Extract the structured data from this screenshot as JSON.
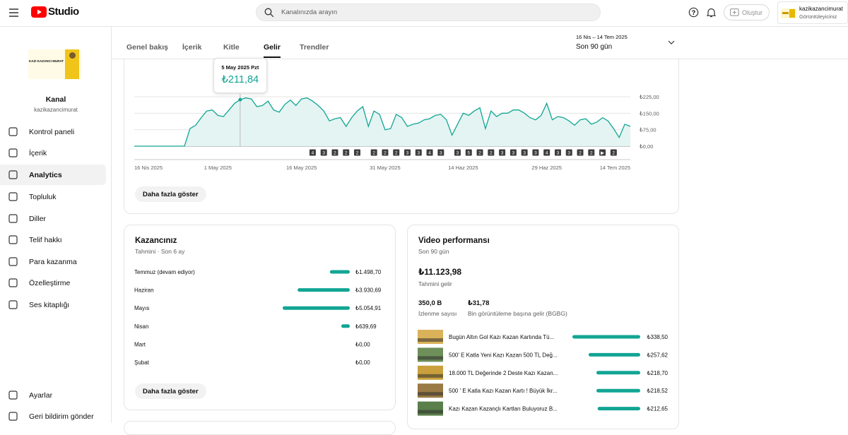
{
  "topbar": {
    "logo": "Studio",
    "search_placeholder": "Kanalınızda arayın",
    "create": "Oluştur",
    "account_name": "kazikazancimurat",
    "account_role": "Görüntüleyiciniz"
  },
  "sidebar": {
    "avatar_text": "KAZI KAZANCI MURAT",
    "channel_title": "Kanal",
    "channel_handle": "kazikazancimurat",
    "nav": [
      "Kontrol paneli",
      "İçerik",
      "Analytics",
      "Topluluk",
      "Diller",
      "Telif hakkı",
      "Para kazanma",
      "Özelleştirme",
      "Ses kitaplığı"
    ],
    "active": "Analytics",
    "footer": [
      "Ayarlar",
      "Geri bildirim gönder"
    ]
  },
  "tabs": {
    "items": [
      "Genel bakış",
      "İçerik",
      "Kitle",
      "Gelir",
      "Trendler"
    ],
    "active": "Gelir"
  },
  "date_range": {
    "range": "16 Nis – 14 Tem 2025",
    "period": "Son 90 gün"
  },
  "chart_data": [
    {
      "type": "line",
      "color": "#12a594",
      "fill": "#e3f4f2",
      "categories": [
        "16 Nis 2025",
        null,
        null,
        null,
        null,
        null,
        null,
        null,
        null,
        null,
        null,
        null,
        null,
        null,
        null,
        "1 May 2025",
        null,
        null,
        null,
        null,
        null,
        null,
        null,
        null,
        null,
        null,
        null,
        null,
        null,
        null,
        "16 May 2025",
        null,
        null,
        null,
        null,
        null,
        null,
        null,
        null,
        null,
        null,
        null,
        null,
        null,
        null,
        "31 May 2025",
        null,
        null,
        null,
        null,
        null,
        null,
        null,
        null,
        null,
        null,
        null,
        null,
        null,
        "14 Haz 2025",
        null,
        null,
        null,
        null,
        null,
        null,
        null,
        null,
        null,
        null,
        null,
        null,
        null,
        null,
        "29 Haz 2025",
        null,
        null,
        null,
        null,
        null,
        null,
        null,
        null,
        null,
        null,
        null,
        null,
        null,
        null,
        "14 Tem 2025"
      ],
      "values": [
        0,
        0,
        0,
        0,
        0,
        0,
        0,
        0,
        0,
        0,
        80,
        95,
        130,
        160,
        165,
        140,
        135,
        165,
        195,
        211.84,
        220,
        215,
        180,
        185,
        205,
        165,
        155,
        190,
        210,
        185,
        215,
        220,
        205,
        185,
        160,
        115,
        125,
        130,
        90,
        130,
        160,
        180,
        90,
        160,
        145,
        75,
        80,
        145,
        130,
        90,
        100,
        105,
        120,
        125,
        140,
        145,
        120,
        50,
        100,
        150,
        140,
        160,
        175,
        80,
        160,
        135,
        150,
        150,
        165,
        165,
        150,
        130,
        120,
        140,
        195,
        120,
        135,
        130,
        115,
        95,
        120,
        125,
        100,
        110,
        130,
        115,
        80,
        40,
        100,
        90
      ],
      "ylim": [
        0,
        225
      ],
      "yticks": [
        {
          "value": 0,
          "label": "₺0,00"
        },
        {
          "value": 75,
          "label": "₺75,00"
        },
        {
          "value": 150,
          "label": "₺150,00"
        },
        {
          "value": 225,
          "label": "₺225,00"
        }
      ],
      "grid": true,
      "tooltip": {
        "title": "5 May 2025 Pzt",
        "value": 211.84,
        "label": "₺211,84"
      },
      "markers": {
        "x": [
          32,
          34,
          36,
          38,
          40,
          43,
          45,
          47,
          49,
          51,
          53,
          55,
          58,
          60,
          62,
          64,
          66,
          68,
          70,
          72,
          74,
          76,
          78,
          80,
          82,
          84,
          86
        ],
        "labels": [
          "4",
          "3",
          "2",
          "2",
          "2",
          "2",
          "2",
          "2",
          "3",
          "3",
          "4",
          "3",
          "3",
          "5",
          "2",
          "2",
          "3",
          "3",
          "3",
          "3",
          "4",
          "3",
          "3",
          "2",
          "2",
          "▶",
          "2"
        ]
      },
      "button": "Daha fazla göster"
    },
    {
      "type": "hbar",
      "title": "Kazancınız",
      "subtitle": "Tahmini · Son 6 ay",
      "color": "#12a594",
      "categories": [
        "Temmuz (devam ediyor)",
        "Haziran",
        "Mayıs",
        "Nisan",
        "Mart",
        "Şubat"
      ],
      "values": [
        1498.7,
        3930.69,
        5054.91,
        639.69,
        0,
        0
      ],
      "value_labels": [
        "₺1.498,70",
        "₺3.930,69",
        "₺5.054,91",
        "₺639,69",
        "₺0,00",
        "₺0,00"
      ],
      "button": "Daha fazla göster"
    },
    {
      "type": "hbar",
      "title": "Video performansı",
      "subtitle": "Son 90 gün",
      "color": "#12a594",
      "summary": {
        "total": "₺11.123,98",
        "total_label": "Tahmini gelir",
        "views": "350,0 B",
        "views_label": "İzlenme sayısı",
        "rpm": "₺31,78",
        "rpm_label": "Bin görüntüleme başına gelir (BGBG)"
      },
      "categories": [
        "Bugün Altın Gol Kazı Kazan Kartında Tü...",
        "500' E Katla Yeni Kazı Kazan 500 TL Değ...",
        "18.000 TL Değerinde 2 Deste Kazı Kazan...",
        "500 ' E Katla Kazı Kazan Kartı ! Büyük İkr...",
        "Kazı Kazan Kazançlı Kartları Buluyoruz B..."
      ],
      "values": [
        338.5,
        257.62,
        218.7,
        218.52,
        212.65
      ],
      "value_labels": [
        "₺338,50",
        "₺257,62",
        "₺218,70",
        "₺218,52",
        "₺212,65"
      ]
    }
  ]
}
